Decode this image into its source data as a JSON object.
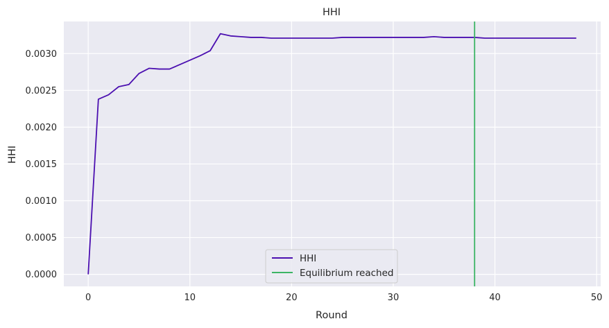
{
  "chart_data": {
    "type": "line",
    "title": "HHI",
    "xlabel": "Round",
    "ylabel": "HHI",
    "xlim": [
      -2.4,
      50.4
    ],
    "ylim": [
      -0.000164,
      0.003436
    ],
    "xticks": [
      0,
      10,
      20,
      30,
      40,
      50
    ],
    "xtick_labels": [
      "0",
      "10",
      "20",
      "30",
      "40",
      "50"
    ],
    "yticks": [
      0,
      0.0005,
      0.001,
      0.0015,
      0.002,
      0.0025,
      0.003
    ],
    "ytick_labels": [
      "0.0000",
      "0.0005",
      "0.0010",
      "0.0015",
      "0.0020",
      "0.0025",
      "0.0030"
    ],
    "grid": true,
    "legend_position": "lower-center",
    "series": [
      {
        "name": "HHI",
        "color": "#4b0fb0",
        "x": [
          0,
          1,
          2,
          3,
          4,
          5,
          6,
          7,
          8,
          9,
          10,
          11,
          12,
          13,
          14,
          15,
          16,
          17,
          18,
          19,
          20,
          21,
          22,
          23,
          24,
          25,
          26,
          27,
          28,
          29,
          30,
          31,
          32,
          33,
          34,
          35,
          36,
          37,
          38,
          39,
          40,
          41,
          42,
          43,
          44,
          45,
          46,
          47,
          48
        ],
        "y": [
          0.0,
          0.00238,
          0.00244,
          0.00255,
          0.00258,
          0.00273,
          0.0028,
          0.00279,
          0.00279,
          0.00285,
          0.00291,
          0.00297,
          0.00304,
          0.00327,
          0.00324,
          0.00323,
          0.00322,
          0.00322,
          0.00321,
          0.00321,
          0.00321,
          0.00321,
          0.00321,
          0.00321,
          0.00321,
          0.00322,
          0.00322,
          0.00322,
          0.00322,
          0.00322,
          0.00322,
          0.00322,
          0.00322,
          0.00322,
          0.00323,
          0.00322,
          0.00322,
          0.00322,
          0.00322,
          0.00321,
          0.00321,
          0.00321,
          0.00321,
          0.00321,
          0.00321,
          0.00321,
          0.00321,
          0.00321,
          0.00321
        ]
      }
    ],
    "vlines": [
      {
        "name": "Equilibrium reached",
        "x": 38,
        "color": "#3cb465"
      }
    ]
  }
}
